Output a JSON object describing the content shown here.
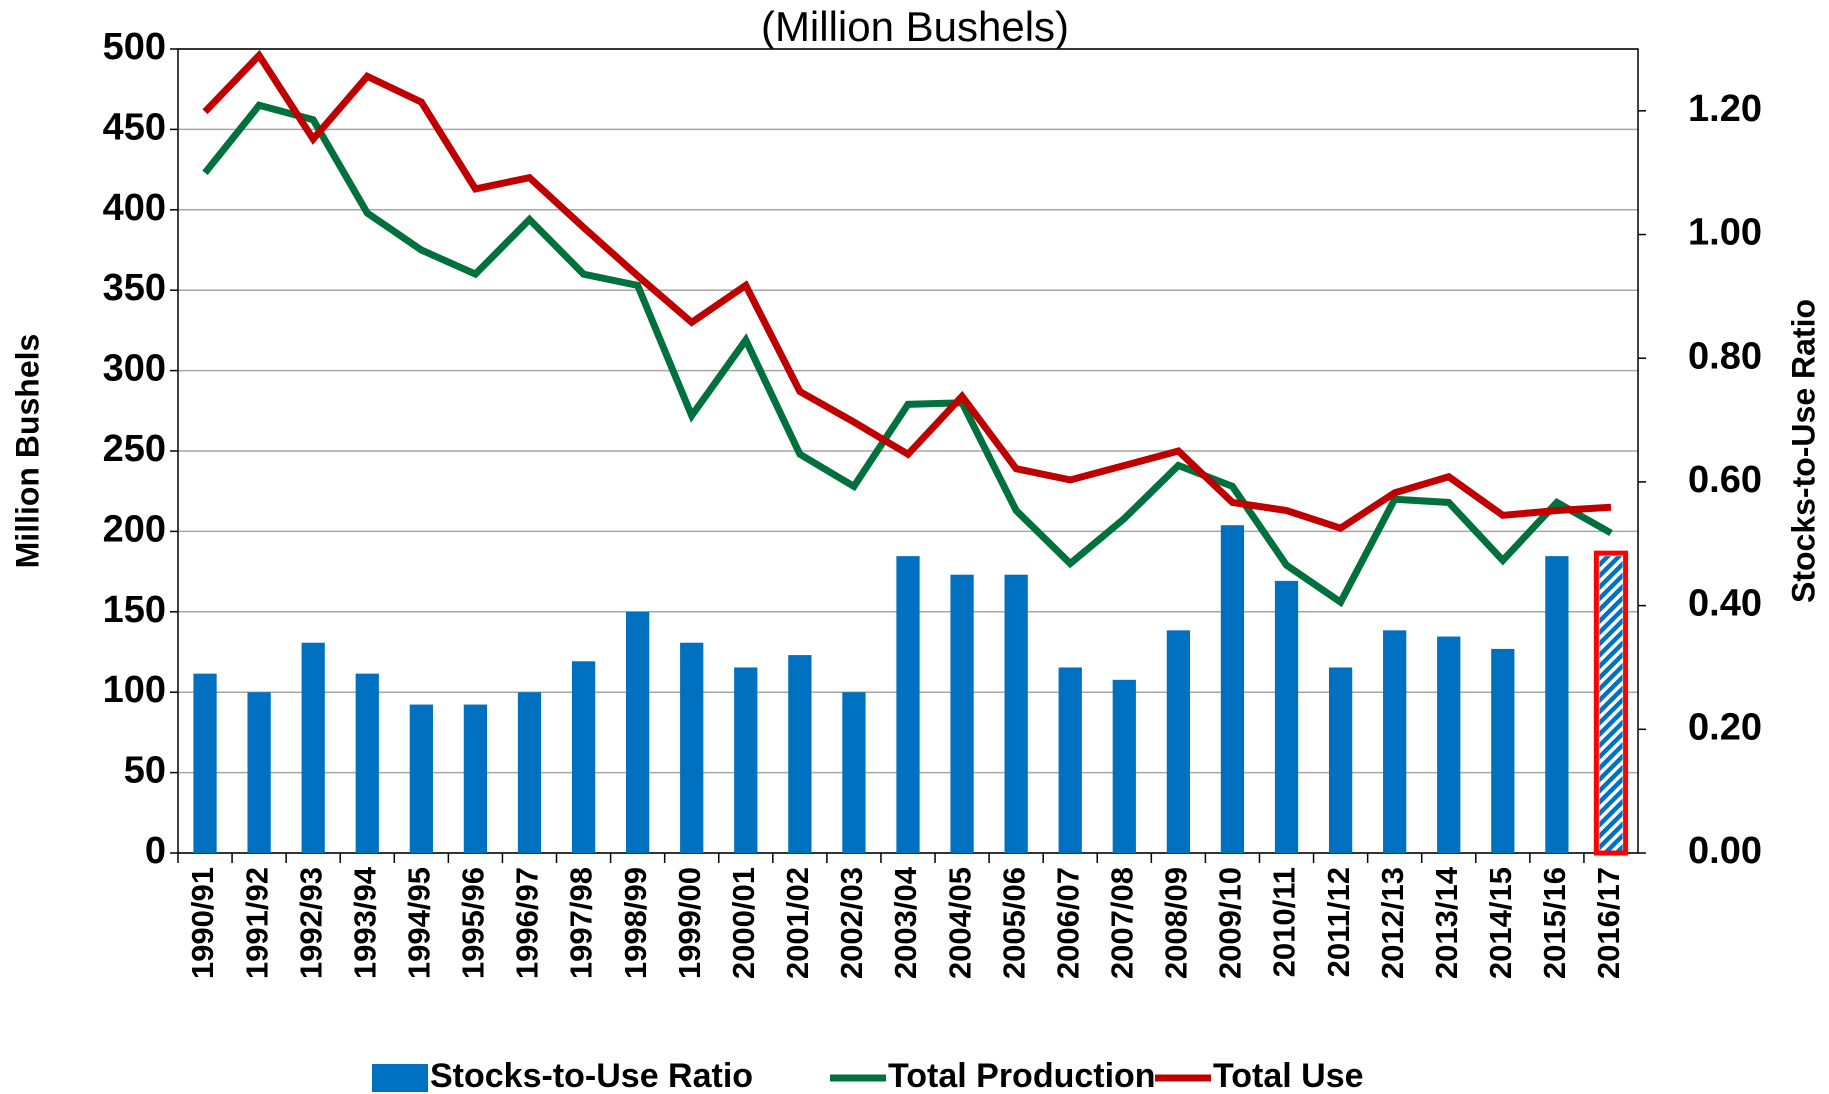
{
  "chart_data": {
    "type": "bar-line",
    "title": "(Million Bushels)",
    "y_label": "Million Bushels",
    "y2_label": "Stocks-to-Use Ratio",
    "categories": [
      "1990/91",
      "1991/92",
      "1992/93",
      "1993/94",
      "1994/95",
      "1995/96",
      "1996/97",
      "1997/98",
      "1998/99",
      "1999/00",
      "2000/01",
      "2001/02",
      "2002/03",
      "2003/04",
      "2004/05",
      "2005/06",
      "2006/07",
      "2007/08",
      "2008/09",
      "2009/10",
      "2010/11",
      "2011/12",
      "2012/13",
      "2013/14",
      "2014/15",
      "2015/16",
      "2016/17"
    ],
    "series": [
      {
        "name": "Stocks-to-Use Ratio",
        "type": "bar",
        "axis": "y2",
        "color": "#0070c0",
        "values": [
          0.29,
          0.26,
          0.34,
          0.29,
          0.24,
          0.24,
          0.26,
          0.31,
          0.39,
          0.34,
          0.3,
          0.32,
          0.26,
          0.48,
          0.45,
          0.45,
          0.3,
          0.28,
          0.36,
          0.53,
          0.44,
          0.3,
          0.36,
          0.35,
          0.33,
          0.48,
          0.48
        ]
      },
      {
        "name": "Total Production",
        "type": "line",
        "color": "#00703c",
        "values": [
          423,
          465,
          456,
          398,
          375,
          360,
          394,
          360,
          353,
          272,
          319,
          248,
          228,
          279,
          280,
          213,
          180,
          208,
          241,
          228,
          179,
          156,
          220,
          218,
          182,
          218,
          199
        ]
      },
      {
        "name": "Total Use",
        "type": "line",
        "color": "#c00000",
        "values": [
          461,
          496,
          444,
          483,
          467,
          413,
          420,
          389,
          359,
          330,
          353,
          287,
          268,
          248,
          284,
          239,
          232,
          241,
          250,
          218,
          213,
          202,
          224,
          234,
          210,
          213,
          215
        ]
      }
    ],
    "ylim": [
      0,
      500
    ],
    "yticks": [
      0,
      50,
      100,
      150,
      200,
      250,
      300,
      350,
      400,
      450,
      500
    ],
    "y2lim": [
      0,
      1.3
    ],
    "y2ticks": [
      {
        "value": 0,
        "label": "0.00"
      },
      {
        "value": 0.2,
        "label": "0.20"
      },
      {
        "value": 0.4,
        "label": "0.40"
      },
      {
        "value": 0.6,
        "label": "0.60"
      },
      {
        "value": 0.8,
        "label": "0.80"
      },
      {
        "value": 1.0,
        "label": "1.00"
      },
      {
        "value": 1.2,
        "label": "1.20"
      }
    ],
    "grid": true,
    "legend": "bottom"
  }
}
